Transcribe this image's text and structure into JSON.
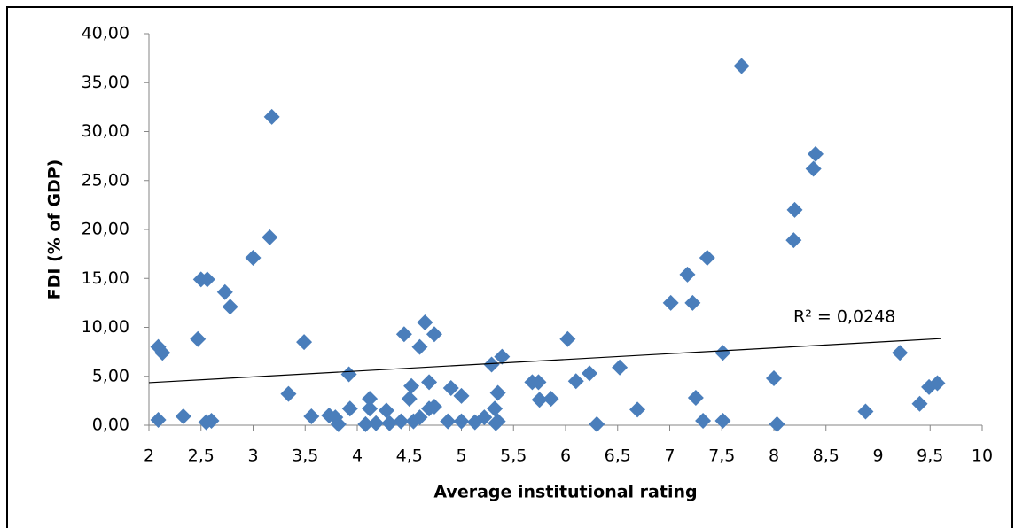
{
  "chart_data": {
    "type": "scatter",
    "x_label": "Average institutional rating",
    "y_label": "FDI (% of GDP)",
    "annotation": "R² = 0,0248",
    "color": "#4a7ebb",
    "x": [
      2.09,
      2.09,
      2.13,
      2.33,
      2.47,
      2.5,
      2.56,
      2.55,
      2.6,
      2.73,
      2.78,
      3.0,
      3.16,
      3.18,
      3.34,
      3.49,
      3.56,
      3.73,
      3.79,
      3.82,
      3.92,
      3.93,
      4.08,
      4.12,
      4.12,
      4.18,
      4.28,
      4.31,
      4.42,
      4.45,
      4.5,
      4.52,
      4.54,
      4.6,
      4.6,
      4.65,
      4.69,
      4.69,
      4.74,
      4.74,
      4.87,
      4.9,
      5.0,
      5.0,
      5.13,
      5.22,
      5.29,
      5.32,
      5.33,
      5.35,
      5.39,
      5.35,
      5.68,
      5.74,
      5.75,
      5.86,
      6.02,
      6.1,
      6.23,
      6.3,
      6.52,
      6.69,
      7.01,
      7.17,
      7.22,
      7.25,
      7.32,
      7.36,
      7.51,
      7.51,
      7.69,
      8.0,
      8.03,
      8.19,
      8.2,
      8.38,
      8.4,
      8.88,
      9.21,
      9.4,
      9.49,
      9.57
    ],
    "values": [
      0.54,
      8.0,
      7.4,
      0.9,
      8.8,
      14.9,
      14.9,
      0.3,
      0.45,
      13.6,
      12.1,
      17.1,
      19.2,
      31.5,
      3.2,
      8.5,
      0.9,
      1.0,
      0.8,
      0.1,
      5.2,
      1.7,
      0.1,
      2.7,
      1.7,
      0.2,
      1.5,
      0.2,
      0.4,
      9.3,
      2.7,
      4.0,
      0.4,
      0.8,
      8.0,
      10.5,
      4.4,
      1.7,
      9.3,
      1.9,
      0.4,
      3.8,
      3.0,
      0.4,
      0.3,
      0.8,
      6.2,
      1.7,
      0.2,
      3.3,
      7.0,
      0.4,
      4.4,
      4.4,
      2.6,
      2.7,
      8.8,
      4.5,
      5.3,
      0.1,
      5.9,
      1.6,
      12.5,
      15.4,
      12.5,
      2.8,
      0.45,
      17.1,
      7.4,
      0.45,
      36.7,
      4.8,
      0.1,
      18.9,
      22.0,
      26.2,
      27.7,
      1.4,
      7.4,
      2.2,
      3.9,
      4.3
    ],
    "trendline": {
      "x": [
        2,
        9.6
      ],
      "y": [
        4.35,
        8.85
      ]
    },
    "xlim": [
      2,
      10
    ],
    "xticks": [
      2,
      {
        "value": 2.5,
        "label": "2,5"
      },
      3,
      {
        "value": 3.5,
        "label": "3,5"
      },
      4,
      {
        "value": 4.5,
        "label": "4,5"
      },
      5,
      {
        "value": 5.5,
        "label": "5,5"
      },
      6,
      {
        "value": 6.5,
        "label": "6,5"
      },
      7,
      {
        "value": 7.5,
        "label": "7,5"
      },
      8,
      {
        "value": 8.5,
        "label": "8,5"
      },
      9,
      {
        "value": 9.5,
        "label": "9,5"
      },
      10
    ],
    "ylim": [
      0,
      40
    ],
    "yticks": [
      {
        "value": 0,
        "label": "0,00"
      },
      {
        "value": 5,
        "label": "5,00"
      },
      {
        "value": 10,
        "label": "10,00"
      },
      {
        "value": 15,
        "label": "15,00"
      },
      {
        "value": 20,
        "label": "20,00"
      },
      {
        "value": 25,
        "label": "25,00"
      },
      {
        "value": 30,
        "label": "30,00"
      },
      {
        "value": 35,
        "label": "35,00"
      },
      {
        "value": 40,
        "label": "40,00"
      }
    ]
  }
}
